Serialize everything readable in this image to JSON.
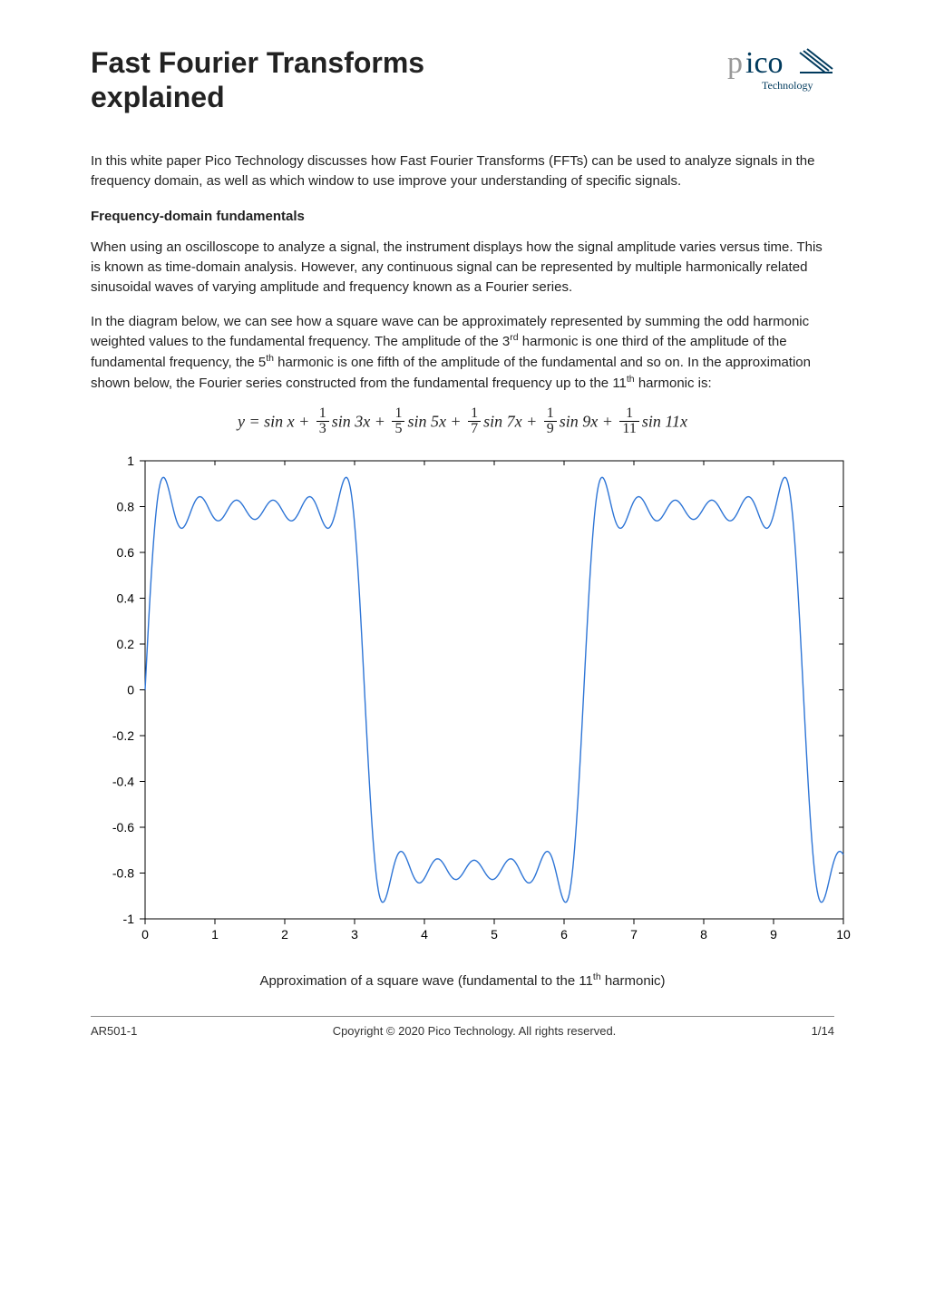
{
  "header": {
    "title_line1": "Fast Fourier Transforms",
    "title_line2": "explained",
    "logo_text": "pico",
    "logo_sub": "Technology",
    "logo_color_p": "#999999",
    "logo_color_ico": "#003a5d",
    "logo_stripes": "#003a5d"
  },
  "intro": "In this white paper Pico Technology discusses how Fast Fourier Transforms (FFTs) can be used to analyze signals in the frequency domain, as well as which window to use improve your understanding of specific signals.",
  "section1_heading": "Frequency-domain fundamentals",
  "para1": "When using an oscilloscope to analyze a signal, the instrument displays how the signal amplitude varies versus time. This is known as time-domain analysis. However, any continuous signal can be represented by multiple harmonically related sinusoidal waves of varying amplitude and frequency known as a Fourier series.",
  "para2_pre": "In the diagram below, we can see how a square wave can be approximately represented by summing the odd harmonic weighted values to the fundamental frequency. The amplitude of the 3",
  "para2_ord1": "rd",
  "para2_mid1": " harmonic is one third of the amplitude of the fundamental frequency, the 5",
  "para2_ord2": "th",
  "para2_mid2": " harmonic is one fifth of the amplitude of the fundamental and so on. In the approximation shown below, the Fourier series constructed from the fundamental frequency up to the 11",
  "para2_ord3": "th",
  "para2_end": " harmonic is:",
  "formula": {
    "lhs": "y = sin x + ",
    "terms": [
      {
        "num": "1",
        "den": "3",
        "trig": "sin 3x + "
      },
      {
        "num": "1",
        "den": "5",
        "trig": "sin 5x + "
      },
      {
        "num": "1",
        "den": "7",
        "trig": "sin 7x + "
      },
      {
        "num": "1",
        "den": "9",
        "trig": "sin 9x + "
      },
      {
        "num": "1",
        "den": "11",
        "trig": "sin 11x"
      }
    ]
  },
  "chart": {
    "type": "line",
    "xlim": [
      0,
      10
    ],
    "ylim": [
      -1,
      1
    ],
    "xtick_step": 1,
    "ytick_step": 0.2,
    "xticks": [
      0,
      1,
      2,
      3,
      4,
      5,
      6,
      7,
      8,
      9,
      10
    ],
    "yticks": [
      -1,
      -0.8,
      -0.6,
      -0.4,
      -0.2,
      0,
      0.2,
      0.4,
      0.6,
      0.8,
      1
    ],
    "line_color": "#2e75d6",
    "line_width": 1.4,
    "axis_color": "#000000",
    "tick_color": "#000000",
    "label_fontsize": 14,
    "background_color": "#ffffff",
    "fundamental_period": 6.2832,
    "harmonics": [
      1,
      3,
      5,
      7,
      9,
      11
    ],
    "n_points": 800
  },
  "caption_pre": "Approximation of a square wave (fundamental to the 11",
  "caption_ord": "th",
  "caption_post": " harmonic)",
  "footer": {
    "left": "AR501-1",
    "center": "Cpoyright © 2020 Pico Technology. All rights reserved.",
    "right": "1/14"
  }
}
